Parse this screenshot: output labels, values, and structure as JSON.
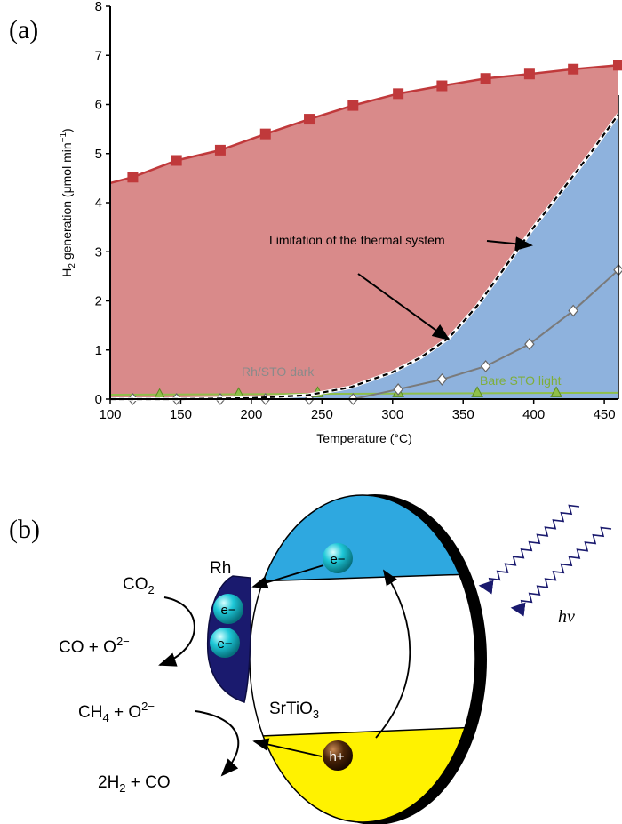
{
  "panel_a": {
    "label": "(a)"
  },
  "panel_b": {
    "label": "(b)",
    "rh": "Rh",
    "co2": "CO2",
    "co_o2": "CO + O2−",
    "ch4_o2": "CH4 + O2−",
    "h2_co": "2H2 + CO",
    "srtio3": "SrTiO3",
    "hv": "hν",
    "electron": "e−",
    "hole": "h+",
    "colors": {
      "conduction": "#2ea8e0",
      "valence": "#fff200",
      "rh": "#1a1a6e",
      "electron": "#1ec8d8",
      "hole": "#4a2408"
    }
  },
  "chart_data": {
    "type": "area",
    "xlabel": "Temperature (°C)",
    "ylabel": "H2 generation (μmol min−1)",
    "xlim": [
      100,
      460
    ],
    "ylim": [
      0,
      8
    ],
    "xticks": [
      100,
      150,
      200,
      250,
      300,
      350,
      400,
      450
    ],
    "yticks": [
      0,
      1,
      2,
      3,
      4,
      5,
      6,
      7,
      8
    ],
    "grid": false,
    "series": [
      {
        "name": "",
        "marker": "square",
        "color": "#c0393b",
        "x": [
          116,
          147,
          178,
          210,
          241,
          272,
          304,
          335,
          366,
          397,
          428,
          460
        ],
        "y": [
          4.52,
          4.86,
          5.07,
          5.4,
          5.7,
          5.98,
          6.22,
          6.38,
          6.53,
          6.62,
          6.72,
          6.8
        ]
      },
      {
        "name": "Rh/STO dark",
        "marker": "diamond",
        "color": "#7a7a7a",
        "x": [
          116,
          147,
          178,
          210,
          241,
          272,
          304,
          335,
          366,
          397,
          428,
          460
        ],
        "y": [
          0.0,
          0.0,
          0.0,
          0.0,
          0.0,
          0.0,
          0.2,
          0.4,
          0.67,
          1.12,
          1.8,
          2.63
        ]
      },
      {
        "name": "Bare STO light",
        "marker": "triangle",
        "color": "#8fbf4a",
        "x": [
          135,
          191,
          247,
          304,
          360,
          416
        ],
        "y": [
          0.08,
          0.1,
          0.12,
          0.12,
          0.12,
          0.12
        ]
      },
      {
        "name": "",
        "style": "dashed",
        "color": "#000000",
        "x": [
          100,
          150,
          200,
          240,
          270,
          300,
          320,
          340,
          360,
          380,
          400,
          420,
          440,
          460
        ],
        "y": [
          0.0,
          0.0,
          0.02,
          0.08,
          0.24,
          0.55,
          0.85,
          1.25,
          1.9,
          2.7,
          3.5,
          4.25,
          5.0,
          5.8
        ]
      }
    ],
    "annotations": [
      {
        "text": "Limitation of the thermal system"
      }
    ]
  }
}
